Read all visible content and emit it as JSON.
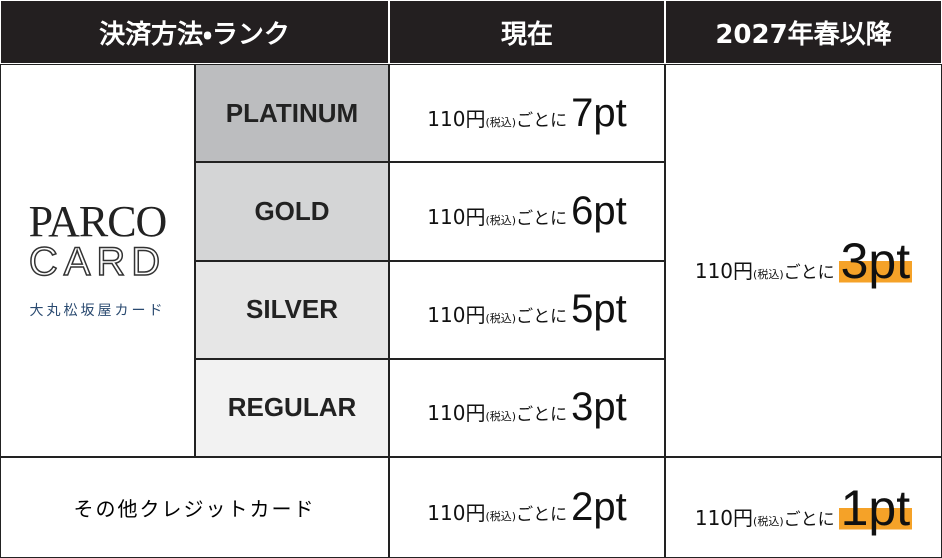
{
  "header": {
    "columns": [
      "決済方法・ランク",
      "現在",
      "2027年春以降"
    ]
  },
  "logo": {
    "brand": "PARCO",
    "card": "CARD",
    "issuer": "大丸松坂屋カード"
  },
  "ranks": [
    {
      "name": "PLATINUM",
      "current": {
        "amount": "110円",
        "tax": "(税込)",
        "unit": "ごとに",
        "points": "7pt"
      }
    },
    {
      "name": "GOLD",
      "current": {
        "amount": "110円",
        "tax": "(税込)",
        "unit": "ごとに",
        "points": "6pt"
      }
    },
    {
      "name": "SILVER",
      "current": {
        "amount": "110円",
        "tax": "(税込)",
        "unit": "ごとに",
        "points": "5pt"
      }
    },
    {
      "name": "REGULAR",
      "current": {
        "amount": "110円",
        "tax": "(税込)",
        "unit": "ごとに",
        "points": "3pt"
      }
    }
  ],
  "future": {
    "amount": "110円",
    "tax": "(税込)",
    "unit": "ごとに",
    "points": "3pt"
  },
  "other": {
    "name": "その他クレジットカード",
    "current": {
      "amount": "110円",
      "tax": "(税込)",
      "unit": "ごとに",
      "points": "2pt"
    },
    "future": {
      "amount": "110円",
      "tax": "(税込)",
      "unit": "ごとに",
      "points": "1pt"
    }
  }
}
